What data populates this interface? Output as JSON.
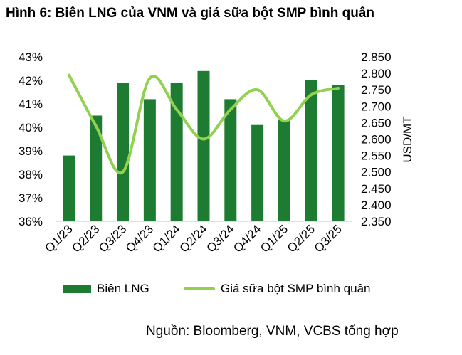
{
  "title": "Hình 6: Biên LNG của VNM và giá sữa bột SMP bình quân",
  "source": "Nguồn: Bloomberg, VNM, VCBS tổng hợp",
  "chart_data": {
    "type": "bar",
    "categories": [
      "Q1/23",
      "Q2/23",
      "Q3/23",
      "Q4/23",
      "Q1/24",
      "Q2/24",
      "Q3/24",
      "Q4/24",
      "Q1/25",
      "Q2/25",
      "Q3/25"
    ],
    "series": [
      {
        "name": "Biên LNG",
        "type": "bar",
        "axis": "left",
        "color": "#1e7b32",
        "values": [
          38.8,
          40.5,
          41.9,
          41.2,
          41.9,
          42.4,
          41.2,
          40.1,
          40.3,
          42.0,
          41.8
        ]
      },
      {
        "name": "Giá sữa bột SMP bình quân",
        "type": "line",
        "axis": "right",
        "color": "#92d050",
        "values": [
          2795,
          2640,
          2500,
          2785,
          2690,
          2600,
          2690,
          2750,
          2655,
          2735,
          2755
        ]
      }
    ],
    "y_left": {
      "min": 36,
      "max": 43,
      "ticks": [
        "36%",
        "37%",
        "38%",
        "39%",
        "40%",
        "41%",
        "42%",
        "43%"
      ]
    },
    "y_right": {
      "min": 2350,
      "max": 2850,
      "label": "USD/MT",
      "ticks": [
        "2.350",
        "2.400",
        "2.450",
        "2.500",
        "2.550",
        "2.600",
        "2.650",
        "2.700",
        "2.750",
        "2.800",
        "2.850"
      ]
    },
    "grid": false,
    "legend_position": "bottom"
  }
}
